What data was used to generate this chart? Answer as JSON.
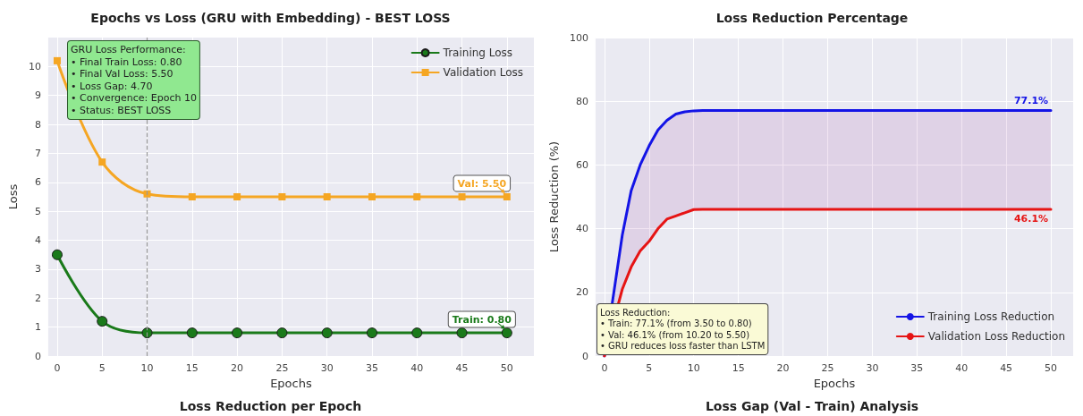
{
  "chart_data": [
    {
      "type": "line",
      "title": "Epochs vs Loss (GRU with Embedding) - BEST LOSS",
      "xlabel": "Epochs",
      "ylabel": "Loss",
      "x": [
        0,
        5,
        10,
        15,
        20,
        25,
        30,
        35,
        40,
        45,
        50
      ],
      "series": [
        {
          "name": "Training Loss",
          "color": "#1a7a1a",
          "marker": "circle",
          "values": [
            3.5,
            1.2,
            0.8,
            0.8,
            0.8,
            0.8,
            0.8,
            0.8,
            0.8,
            0.8,
            0.8
          ]
        },
        {
          "name": "Validation Loss",
          "color": "#f5a623",
          "marker": "square",
          "values": [
            10.2,
            6.7,
            5.6,
            5.5,
            5.5,
            5.5,
            5.5,
            5.5,
            5.5,
            5.5,
            5.5
          ]
        }
      ],
      "xlim": [
        -1,
        53
      ],
      "ylim": [
        0,
        11
      ],
      "xticks": [
        0,
        5,
        10,
        15,
        20,
        25,
        30,
        35,
        40,
        45,
        50
      ],
      "yticks": [
        0,
        1,
        2,
        3,
        4,
        5,
        6,
        7,
        8,
        9,
        10
      ],
      "ref_lines": [
        {
          "axis": "x",
          "value": 10,
          "color": "#999999",
          "line_style": "dashed"
        }
      ],
      "annotations": [
        "GRU Loss Performance:\n• Final Train Loss: 0.80\n• Final Val Loss: 5.50\n• Loss Gap: 4.70\n• Convergence: Epoch 10\n• Status: BEST LOSS",
        "Loss Reduction per Epoch",
        "Train: 0.80",
        "Val: 5.50"
      ],
      "grid": true,
      "legend": "top right"
    },
    {
      "type": "line",
      "title": "Loss Reduction Percentage",
      "xlabel": "Epochs",
      "ylabel": "Loss Reduction (%)",
      "x": [
        0,
        1,
        2,
        3,
        4,
        5,
        6,
        7,
        8,
        9,
        10,
        11,
        12,
        50
      ],
      "series": [
        {
          "name": "Training Loss Reduction",
          "color": "#1414e6",
          "values": [
            0,
            19,
            38,
            52,
            60,
            66,
            71,
            74,
            76,
            76.7,
            77,
            77.1,
            77.1,
            77.1
          ],
          "lower": [
            0,
            null,
            21,
            28,
            33,
            36,
            40,
            43,
            44,
            45,
            46,
            46.1,
            46.1,
            46.1
          ],
          "upper": [
            0,
            null,
            38,
            52,
            60,
            66,
            71,
            74,
            76,
            76.7,
            77,
            77.1,
            77.1,
            77.1
          ]
        },
        {
          "name": "Validation Loss Reduction",
          "color": "#e61414",
          "values": [
            0,
            null,
            21,
            28,
            33,
            36,
            40,
            43,
            44,
            45,
            46,
            46.1,
            46.1,
            46.1
          ]
        }
      ],
      "xlim": [
        -1,
        52.5
      ],
      "ylim": [
        0,
        100
      ],
      "xticks": [
        0,
        5,
        10,
        15,
        20,
        25,
        30,
        35,
        40,
        45,
        50
      ],
      "yticks": [
        0,
        20,
        40,
        60,
        80,
        100
      ],
      "annotations": [
        "Loss Reduction:\n• Train: 77.1% (from 3.50 to 0.80)\n• Val: 46.1% (from 10.20 to 5.50)\n• GRU reduces loss faster than LSTM",
        "Loss Gap (Val - Train) Analysis",
        "77.1%",
        "46.1%"
      ],
      "marker": "none",
      "grid": true,
      "legend": "bottom right"
    }
  ]
}
